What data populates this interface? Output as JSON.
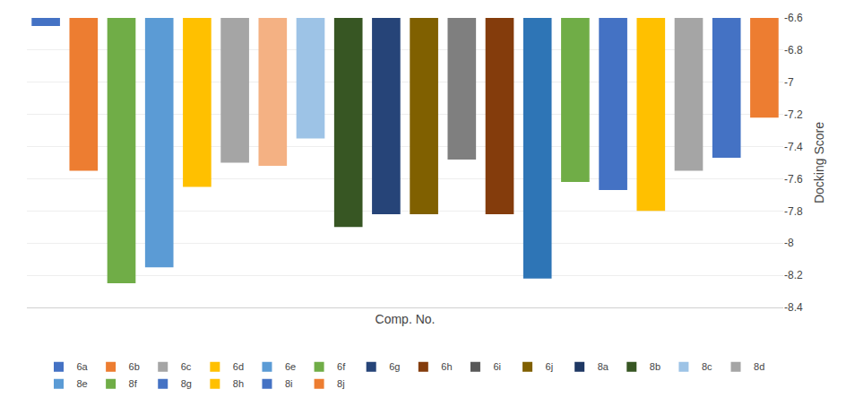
{
  "chart_data": {
    "type": "bar",
    "categories": [
      "6a",
      "6b",
      "6c",
      "6d",
      "6e",
      "6f",
      "6g",
      "6h",
      "6i",
      "6j",
      "8a",
      "8b",
      "8c",
      "8d",
      "8e",
      "8f",
      "8g",
      "8h",
      "8i",
      "8j"
    ],
    "values": [
      -6.65,
      -7.55,
      -8.25,
      -8.15,
      -7.65,
      -7.5,
      -7.52,
      -7.35,
      -7.9,
      -7.82,
      -7.82,
      -7.48,
      -7.82,
      -8.22,
      -7.62,
      -7.67,
      -7.8,
      -7.55,
      -7.47,
      -7.22
    ],
    "colors": [
      "#4472C4",
      "#ED7D31",
      "#70AD47",
      "#5B9BD5",
      "#FFC000",
      "#A5A5A5",
      "#F4B183",
      "#9DC3E6",
      "#375623",
      "#264478",
      "#806000",
      "#7F7F7F",
      "#843C0C",
      "#2E75B6",
      "#70AD47",
      "#4472C4",
      "#FFC000",
      "#A5A5A5",
      "#4472C4",
      "#ED7D31"
    ],
    "series": [
      {
        "name": "6a",
        "color": "#4472C4"
      },
      {
        "name": "6b",
        "color": "#ED7D31"
      },
      {
        "name": "6c",
        "color": "#A5A5A5"
      },
      {
        "name": "6d",
        "color": "#FFC000"
      },
      {
        "name": "6e",
        "color": "#5B9BD5"
      },
      {
        "name": "6f",
        "color": "#70AD47"
      },
      {
        "name": "6g",
        "color": "#264478"
      },
      {
        "name": "6h",
        "color": "#843C0C"
      },
      {
        "name": "6i",
        "color": "#595959"
      },
      {
        "name": "6j",
        "color": "#806000"
      },
      {
        "name": "8a",
        "color": "#1F3864"
      },
      {
        "name": "8b",
        "color": "#375623"
      },
      {
        "name": "8c",
        "color": "#9DC3E6"
      },
      {
        "name": "8d",
        "color": "#A5A5A5"
      },
      {
        "name": "8e",
        "color": "#5B9BD5"
      },
      {
        "name": "8f",
        "color": "#70AD47"
      },
      {
        "name": "8g",
        "color": "#4472C4"
      },
      {
        "name": "8h",
        "color": "#FFC000"
      },
      {
        "name": "8i",
        "color": "#4472C4"
      },
      {
        "name": "8j",
        "color": "#ED7D31"
      }
    ],
    "xlabel": "Comp. No.",
    "ylabel": "Docking Score",
    "ylim": [
      -8.4,
      -6.6
    ],
    "yticks": [
      -8.4,
      -8.2,
      -8,
      -7.8,
      -7.6,
      -7.4,
      -7.2,
      -7,
      -6.8,
      -6.6
    ],
    "grid": true,
    "tick_labels": "y",
    "legend": "bottom"
  }
}
